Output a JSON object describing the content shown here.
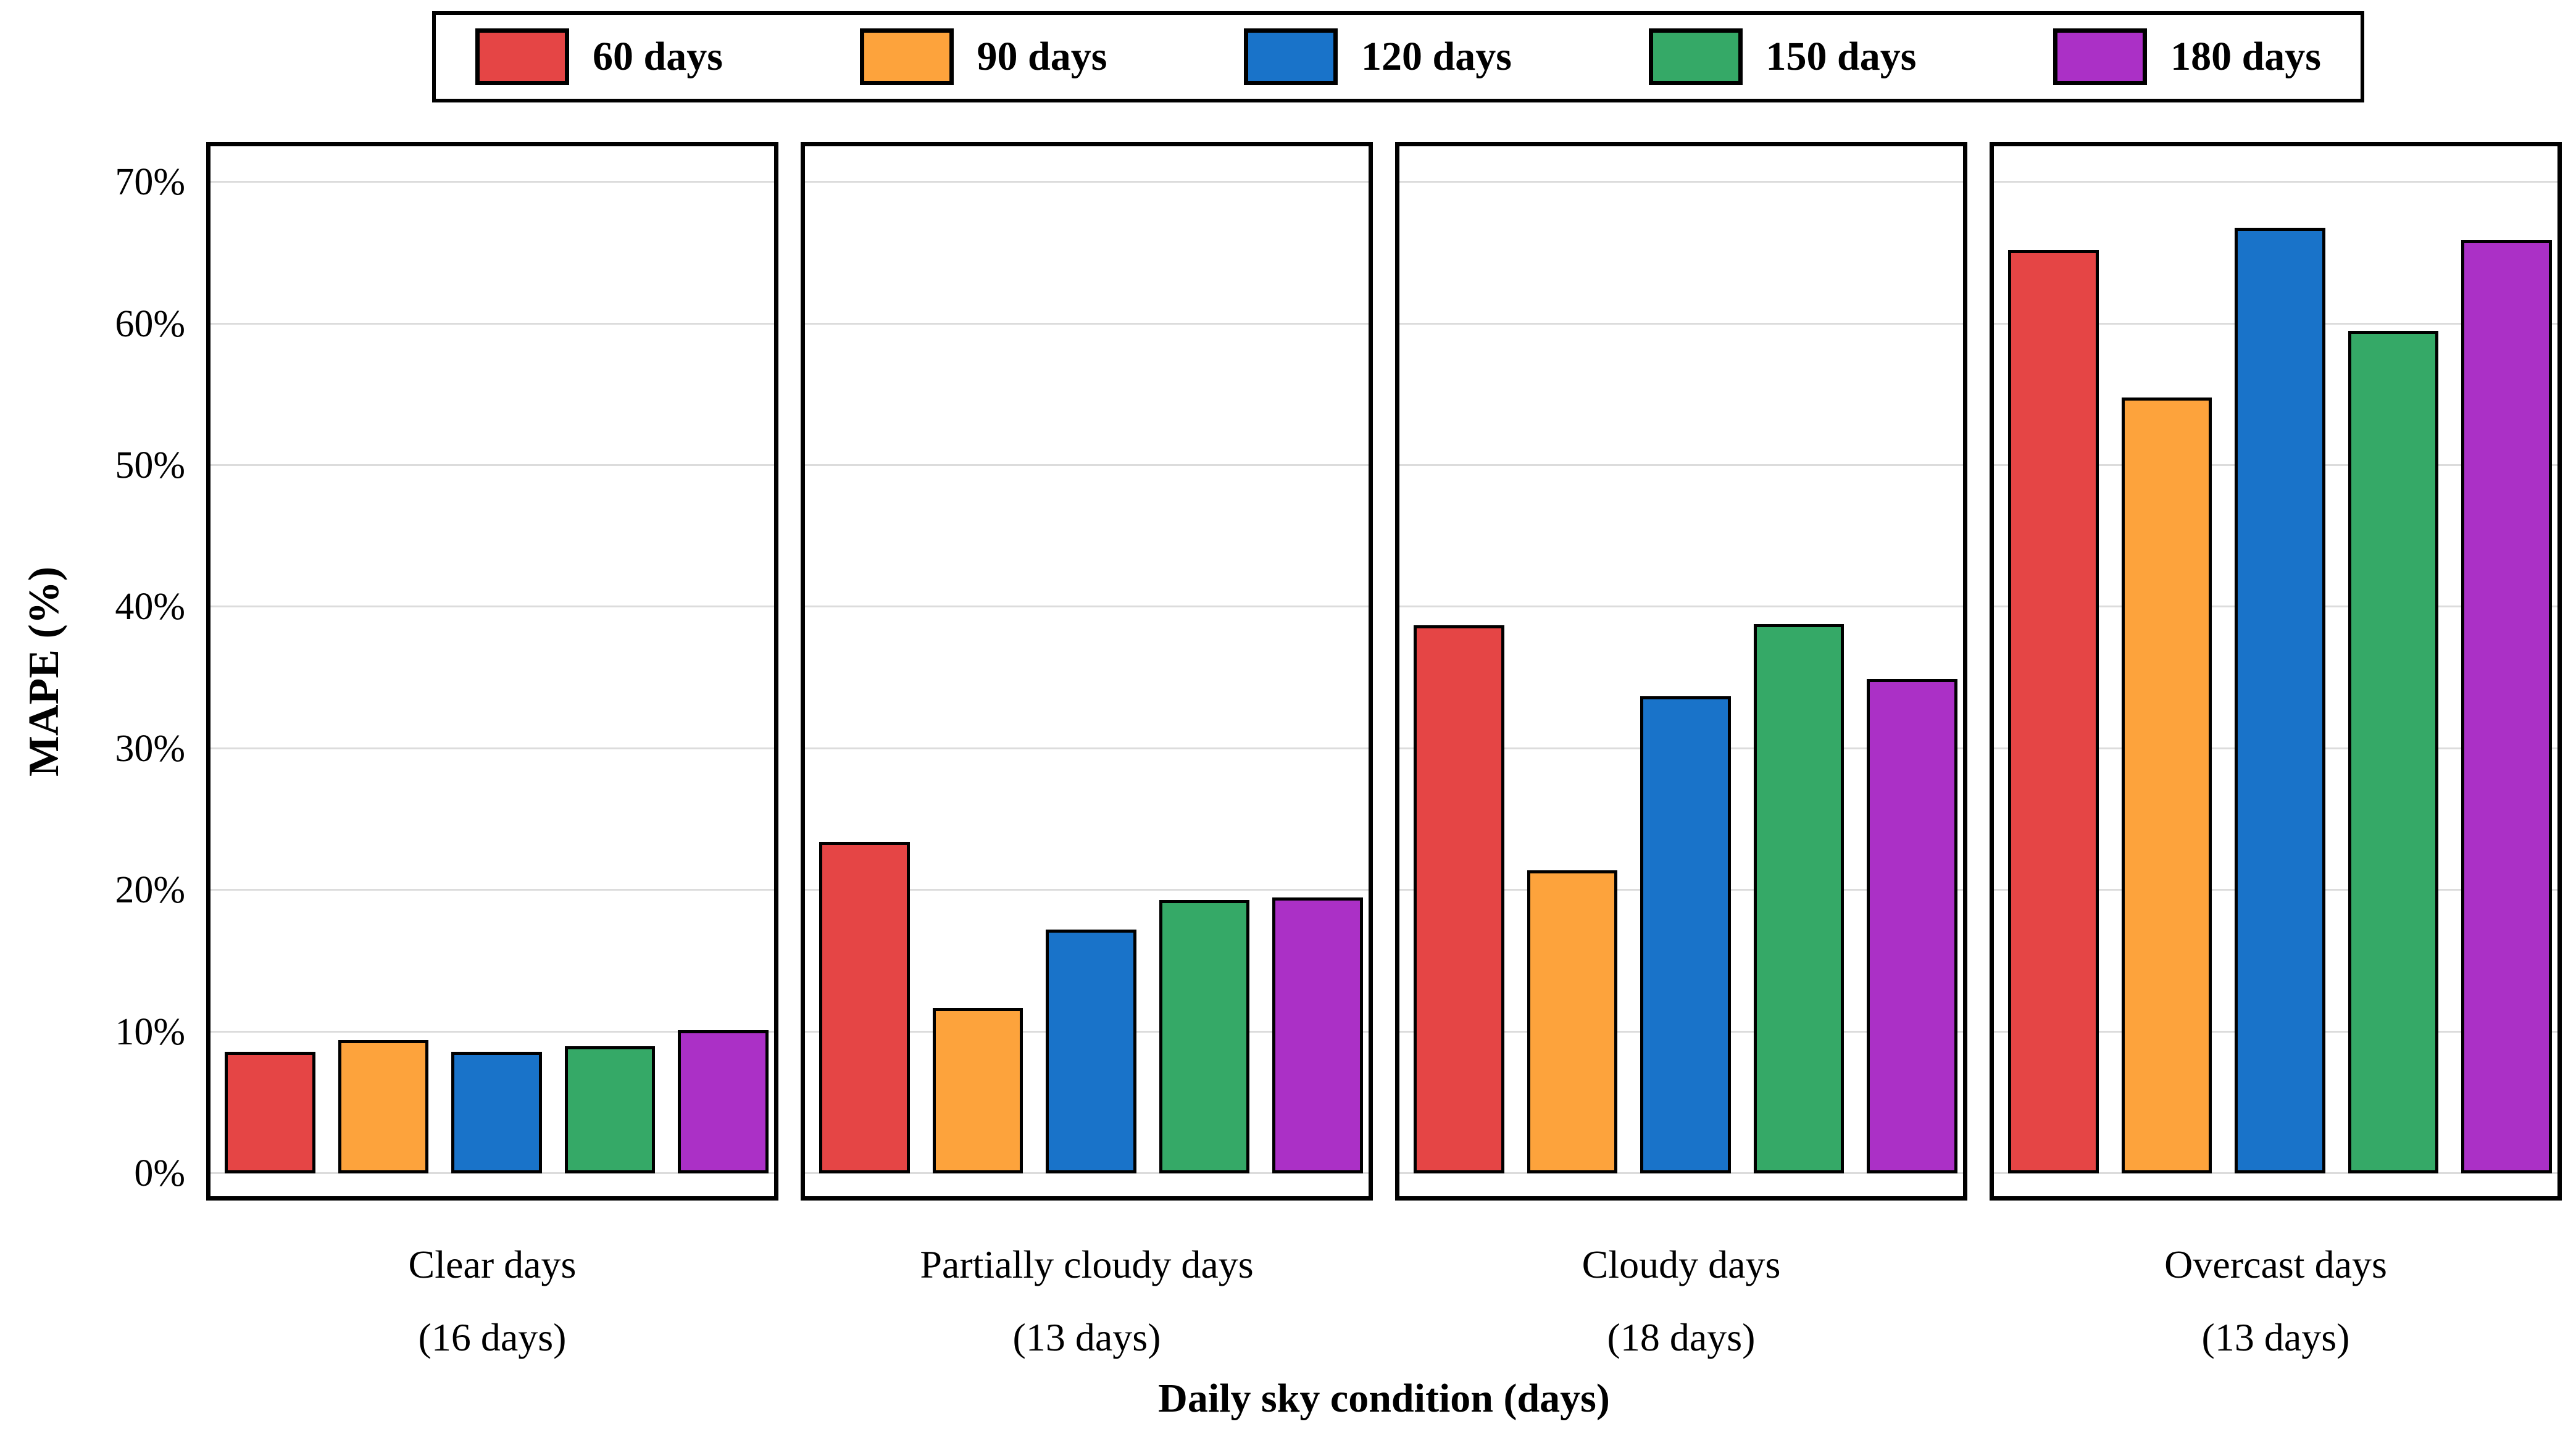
{
  "figure": {
    "background": "#ffffff",
    "grid_color": "#dcdcdc",
    "border_color": "#000000"
  },
  "legend": {
    "position": "top",
    "items": [
      {
        "label": "60 days",
        "color": "#e54545"
      },
      {
        "label": "90 days",
        "color": "#fda33c"
      },
      {
        "label": "120 days",
        "color": "#1973c9"
      },
      {
        "label": "150 days",
        "color": "#35a967"
      },
      {
        "label": "180 days",
        "color": "#ab30c6"
      }
    ]
  },
  "chart_data": {
    "type": "bar",
    "title": "",
    "xlabel": "Daily sky condition (days)",
    "ylabel": "MAPE (%)",
    "ylim": [
      0,
      70
    ],
    "yticks": [
      "0%",
      "10%",
      "20%",
      "30%",
      "40%",
      "50%",
      "60%",
      "70%"
    ],
    "grid": true,
    "legend_position": "top",
    "categories": [
      "Clear days",
      "Partially cloudy days",
      "Cloudy days",
      "Overcast days"
    ],
    "category_sublabels": [
      "(16 days)",
      "(13 days)",
      "(18 days)",
      "(13 days)"
    ],
    "series": [
      {
        "name": "60 days",
        "color": "#e54545",
        "values": [
          8.6,
          23.4,
          38.7,
          65.2
        ]
      },
      {
        "name": "90 days",
        "color": "#fda33c",
        "values": [
          9.4,
          11.7,
          21.4,
          54.8
        ]
      },
      {
        "name": "120 days",
        "color": "#1973c9",
        "values": [
          8.6,
          17.2,
          33.7,
          66.8
        ]
      },
      {
        "name": "150 days",
        "color": "#35a967",
        "values": [
          9.0,
          19.3,
          38.8,
          59.5
        ]
      },
      {
        "name": "180 days",
        "color": "#ab30c6",
        "values": [
          10.1,
          19.5,
          34.9,
          65.9
        ]
      }
    ]
  }
}
